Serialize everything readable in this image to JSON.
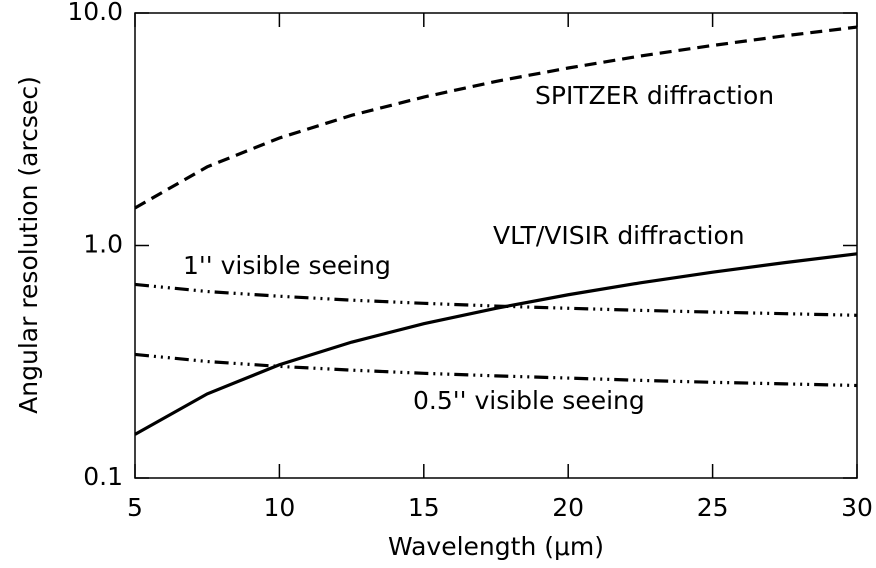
{
  "chart_data": {
    "type": "line",
    "xlabel": "Wavelength (μm)",
    "ylabel": "Angular resolution (arcsec)",
    "x": [
      5,
      7.5,
      10,
      12.5,
      15,
      17.5,
      20,
      22.5,
      25,
      27.5,
      30
    ],
    "series": [
      {
        "name": "SPITZER diffraction",
        "color": "#000000",
        "linestyle": "dashed",
        "values": [
          1.45,
          2.18,
          2.9,
          3.63,
          4.35,
          5.08,
          5.8,
          6.53,
          7.25,
          7.98,
          8.7
        ]
      },
      {
        "name": "VLT/VISIR diffraction",
        "color": "#000000",
        "linestyle": "solid",
        "values": [
          0.154,
          0.23,
          0.307,
          0.384,
          0.461,
          0.537,
          0.614,
          0.691,
          0.768,
          0.844,
          0.921
        ]
      },
      {
        "name": "1'' visible seeing",
        "color": "#000000",
        "linestyle": "dashdotdotdot",
        "values": [
          0.68,
          0.634,
          0.605,
          0.582,
          0.564,
          0.549,
          0.537,
          0.526,
          0.517,
          0.509,
          0.501
        ]
      },
      {
        "name": "0.5'' visible seeing",
        "color": "#000000",
        "linestyle": "dashdotdotdot",
        "values": [
          0.34,
          0.317,
          0.302,
          0.291,
          0.282,
          0.275,
          0.269,
          0.263,
          0.258,
          0.254,
          0.25
        ]
      }
    ],
    "xlim": [
      5,
      30
    ],
    "xticks": [
      5,
      10,
      15,
      20,
      25,
      30
    ],
    "ylim": [
      0.1,
      10
    ],
    "ylog": true,
    "yticks": [
      0.1,
      {
        "value": 1,
        "label": "1.0"
      },
      {
        "value": 10,
        "label": "10.0"
      }
    ]
  }
}
